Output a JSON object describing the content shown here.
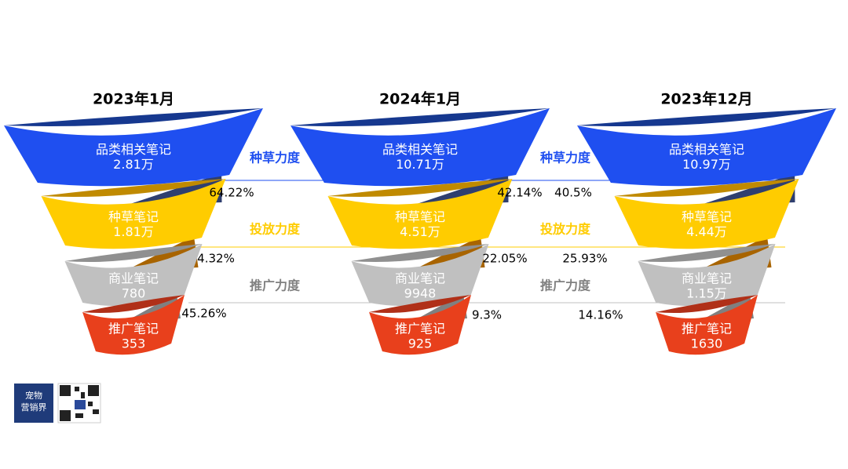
{
  "funnels": [
    {
      "title": "2023年1月",
      "stages": [
        {
          "name": "品类相关笔记",
          "value": "2.81万"
        },
        {
          "name": "种草笔记",
          "value": "1.81万"
        },
        {
          "name": "商业笔记",
          "value": "780"
        },
        {
          "name": "推广笔记",
          "value": "353"
        }
      ],
      "rates": [
        "64.22%",
        "4.32%",
        "45.26%"
      ]
    },
    {
      "title": "2024年1月",
      "stages": [
        {
          "name": "品类相关笔记",
          "value": "10.71万"
        },
        {
          "name": "种草笔记",
          "value": "4.51万"
        },
        {
          "name": "商业笔记",
          "value": "9948"
        },
        {
          "name": "推广笔记",
          "value": "925"
        }
      ],
      "rates": [
        "42.14%",
        "22.05%",
        "9.3%"
      ]
    },
    {
      "title": "2023年12月",
      "stages": [
        {
          "name": "品类相关笔记",
          "value": "10.97万"
        },
        {
          "name": "种草笔记",
          "value": "4.44万"
        },
        {
          "name": "商业笔记",
          "value": "1.15万"
        },
        {
          "name": "推广笔记",
          "value": "1630"
        }
      ],
      "rates": [
        "40.5%",
        "25.93%",
        "14.16%"
      ]
    }
  ],
  "gaps": [
    {
      "labels": [
        "种草力度",
        "投放力度",
        "推广力度"
      ]
    },
    {
      "labels": [
        "种草力度",
        "投放力度",
        "推广力度"
      ]
    }
  ],
  "logo": {
    "line1": "宠物",
    "line2": "营销界"
  }
}
